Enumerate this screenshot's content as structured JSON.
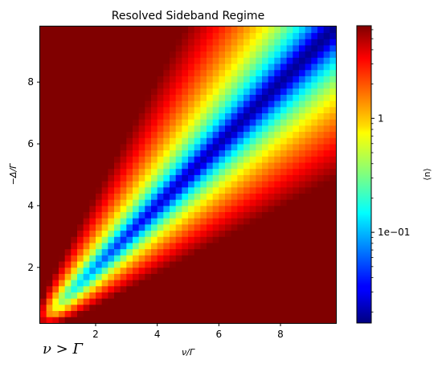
{
  "chart_data": {
    "type": "heatmap",
    "title": "Resolved Sideband Regime",
    "xlabel": "ν/Γ",
    "ylabel": "−Δ/Γ",
    "xlim": [
      0.2,
      9.8
    ],
    "ylim": [
      0.2,
      9.8
    ],
    "x_ticks": [
      2,
      4,
      6,
      8
    ],
    "y_ticks": [
      2,
      4,
      6,
      8
    ],
    "grid_cells": [
      48,
      48
    ],
    "colorbar": {
      "label": "⟨n⟩",
      "scale": "log",
      "colormap": "jet",
      "range": [
        0.016,
        6.5
      ],
      "ticks": [
        {
          "value": 1,
          "label": "1"
        },
        {
          "value": 0.1,
          "label": "1e−01"
        }
      ]
    },
    "description_of_values": "⟨n⟩ minimal (~0.016) along the diagonal ridge −Δ/Γ ≈ ν/Γ at large ν, rising to >6 near the left and bottom edges"
  },
  "annotation": "ν > Γ"
}
